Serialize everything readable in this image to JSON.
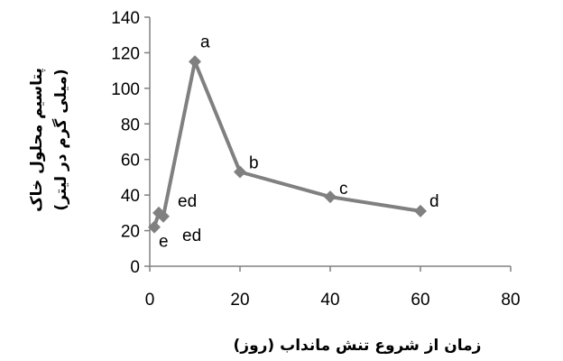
{
  "chart_data": {
    "type": "line",
    "xlabel": "زمان از شروع تنش مانداب (روز)",
    "ylabel": [
      "پتاسیم محلول خاک",
      "(میلی گرم در لیتر)"
    ],
    "xlim": [
      0,
      80
    ],
    "ylim": [
      0,
      140
    ],
    "x_ticks": [
      0,
      20,
      40,
      60,
      80
    ],
    "y_ticks": [
      0,
      20,
      40,
      60,
      80,
      100,
      120,
      140
    ],
    "grid": false,
    "line_color": "#808080",
    "marker": "diamond",
    "series": [
      {
        "x": [
          1,
          2,
          3,
          10,
          20,
          40,
          60
        ],
        "y": [
          22,
          30,
          28,
          115,
          53,
          39,
          31
        ],
        "labels": [
          "e",
          "ed",
          "ed",
          "a",
          "b",
          "c",
          "d"
        ]
      }
    ]
  }
}
